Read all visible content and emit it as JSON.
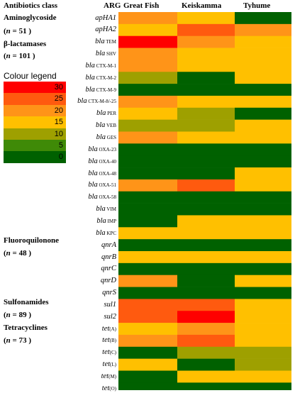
{
  "header": {
    "antibiotics_class": "Antibiotics class",
    "arg": "ARG"
  },
  "classes": [
    {
      "name": "Aminoglycoside",
      "n_prefix": "(",
      "n_label": "n",
      "n_value": " = 51",
      "n_suffix": " )"
    },
    {
      "name": "β-lactamases",
      "n_prefix": "(",
      "n_label": "n",
      "n_value": " = 101",
      "n_suffix": " )"
    },
    {
      "name": "Fluoroquilonone",
      "n_prefix": "(",
      "n_label": "n",
      "n_value": " = 48",
      "n_suffix": " )"
    },
    {
      "name": "Sulfonamides",
      "n_prefix": "(",
      "n_label": "n",
      "n_value": " = 89",
      "n_suffix": " )"
    },
    {
      "name": "Tetracyclines",
      "n_prefix": "(",
      "n_label": "n",
      "n_value": " = 73",
      "n_suffix": " )"
    }
  ],
  "legend": {
    "title": "Colour legend",
    "levels": [
      {
        "label": "30",
        "color": "#ff0000"
      },
      {
        "label": "25",
        "color": "#ff5a0f"
      },
      {
        "label": "20",
        "color": "#ff9418"
      },
      {
        "label": "15",
        "color": "#ffc000"
      },
      {
        "label": "10",
        "color": "#9ea000"
      },
      {
        "label": "5",
        "color": "#3f8a07"
      },
      {
        "label": "0",
        "color": "#006100"
      }
    ]
  },
  "genes": [
    {
      "main": "apHA1",
      "sub": ""
    },
    {
      "main": "apHA2",
      "sub": ""
    },
    {
      "main": "bla",
      "sub": "TEM"
    },
    {
      "main": "bla",
      "sub": "SHV"
    },
    {
      "main": "bla",
      "sub": "CTX-M-1"
    },
    {
      "main": "bla",
      "sub": "CTX-M-2"
    },
    {
      "main": "bla",
      "sub": "CTX-M-9"
    },
    {
      "main": "bla",
      "sub": "CTX-M-8/-25"
    },
    {
      "main": "bla",
      "sub": "PER"
    },
    {
      "main": "bla",
      "sub": "VEB"
    },
    {
      "main": "bla",
      "sub": "GES"
    },
    {
      "main": "bla",
      "sub": "OXA-23"
    },
    {
      "main": "bla",
      "sub": "OXA-40"
    },
    {
      "main": "bla",
      "sub": "OXA-48"
    },
    {
      "main": "bla",
      "sub": "OXA-51"
    },
    {
      "main": "bla",
      "sub": "OXA-58"
    },
    {
      "main": "bla",
      "sub": "VIM"
    },
    {
      "main": "bla",
      "sub": "IMP"
    },
    {
      "main": "bla",
      "sub": "KPC"
    },
    {
      "main": "qnrA",
      "sub": ""
    },
    {
      "main": "qnrB",
      "sub": ""
    },
    {
      "main": "qnrC",
      "sub": ""
    },
    {
      "main": "qnrD",
      "sub": ""
    },
    {
      "main": "qnrS",
      "sub": ""
    },
    {
      "main": "sul1",
      "sub": ""
    },
    {
      "main": "sul2",
      "sub": ""
    },
    {
      "main": "tet",
      "sub": "(A)"
    },
    {
      "main": "tet",
      "sub": "(B)"
    },
    {
      "main": "tet",
      "sub": "(C)"
    },
    {
      "main": "tet",
      "sub": "(L)"
    },
    {
      "main": "tet",
      "sub": "(M)"
    },
    {
      "main": "tet",
      "sub": "(O)"
    }
  ],
  "chart_data": {
    "type": "heatmap",
    "columns": [
      "Great Fish",
      "Keiskamma",
      "Tyhume"
    ],
    "color_scale": [
      0,
      5,
      10,
      15,
      20,
      25,
      30
    ],
    "values": [
      [
        20,
        15,
        0
      ],
      [
        15,
        25,
        20
      ],
      [
        30,
        20,
        15
      ],
      [
        20,
        15,
        15
      ],
      [
        20,
        15,
        15
      ],
      [
        10,
        0,
        15
      ],
      [
        0,
        0,
        0
      ],
      [
        20,
        15,
        15
      ],
      [
        15,
        10,
        0
      ],
      [
        10,
        10,
        15
      ],
      [
        20,
        15,
        15
      ],
      [
        0,
        0,
        0
      ],
      [
        0,
        0,
        0
      ],
      [
        0,
        0,
        15
      ],
      [
        20,
        25,
        15
      ],
      [
        0,
        0,
        0
      ],
      [
        0,
        0,
        0
      ],
      [
        0,
        15,
        15
      ],
      [
        15,
        15,
        15
      ],
      [
        0,
        0,
        0
      ],
      [
        15,
        15,
        15
      ],
      [
        0,
        0,
        0
      ],
      [
        20,
        0,
        15
      ],
      [
        0,
        0,
        0
      ],
      [
        25,
        25,
        15
      ],
      [
        25,
        30,
        15
      ],
      [
        15,
        20,
        15
      ],
      [
        20,
        25,
        15
      ],
      [
        0,
        10,
        10
      ],
      [
        15,
        0,
        10
      ],
      [
        0,
        15,
        15
      ],
      [
        0,
        0,
        0
      ]
    ]
  }
}
